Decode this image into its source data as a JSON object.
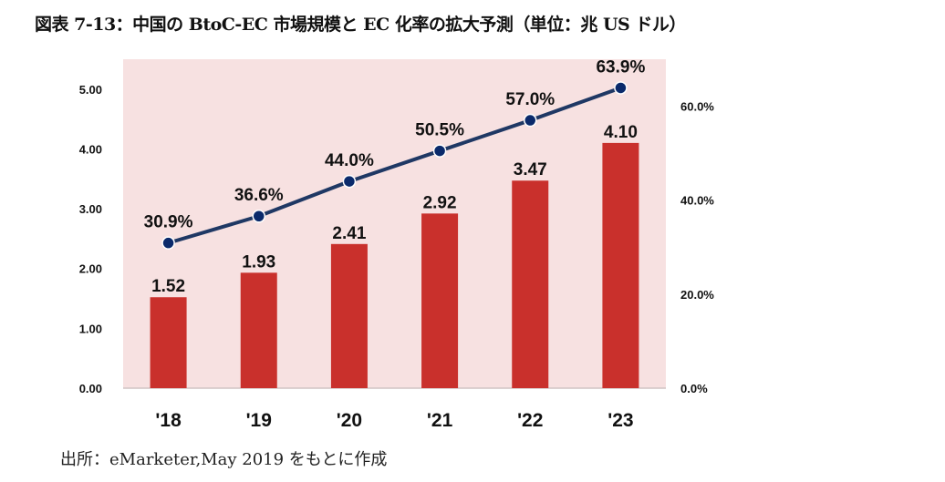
{
  "title": "図表 7-13：中国の BtoC-EC 市場規模と EC 化率の拡大予測（単位：兆 US ドル）",
  "source": "出所：eMarketer,May 2019 をもとに作成",
  "chart_data": {
    "type": "bar+line",
    "title": "図表 7-13：中国の BtoC-EC 市場規模と EC 化率の拡大予測（単位：兆 US ドル）",
    "categories": [
      "'18",
      "'19",
      "'20",
      "'21",
      "'22",
      "'23"
    ],
    "series": [
      {
        "type": "bar",
        "axis": "left",
        "values": [
          1.52,
          1.93,
          2.41,
          2.92,
          3.47,
          4.1
        ],
        "labels": [
          "1.52",
          "1.93",
          "2.41",
          "2.92",
          "3.47",
          "4.10"
        ],
        "color": "#c9302c"
      },
      {
        "type": "line",
        "axis": "right",
        "values": [
          30.9,
          36.6,
          44.0,
          50.5,
          57.0,
          63.9
        ],
        "labels": [
          "30.9%",
          "36.6%",
          "44.0%",
          "50.5%",
          "57.0%",
          "63.9%"
        ],
        "color": "#1f3864",
        "marker_color": "#0b2a6b"
      }
    ],
    "left_axis": {
      "ylim": [
        0,
        5.5
      ],
      "ticks": [
        "0.00",
        "1.00",
        "2.00",
        "3.00",
        "4.00",
        "5.00"
      ],
      "tick_values": [
        0,
        1,
        2,
        3,
        4,
        5
      ]
    },
    "right_axis": {
      "ylim": [
        0,
        70
      ],
      "ticks": [
        "0.0%",
        "20.0%",
        "40.0%",
        "60.0%"
      ],
      "tick_values": [
        0,
        20,
        40,
        60
      ]
    },
    "plot_background": "#f7e1e1",
    "grid": false,
    "legend": "none"
  }
}
